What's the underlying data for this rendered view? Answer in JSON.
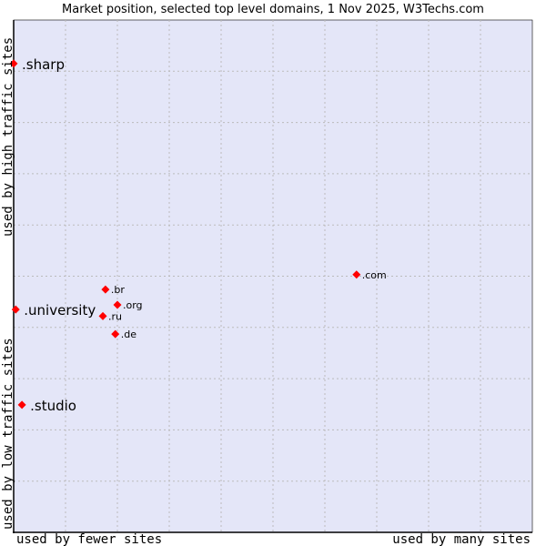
{
  "chart_data": {
    "type": "scatter",
    "title": "Market position, selected top level domains, 1 Nov 2025, W3Techs.com",
    "xlabel_left": "used by fewer sites",
    "xlabel_right": "used by many sites",
    "ylabel_bottom": "used by low traffic sites",
    "ylabel_top": "used by high traffic sites",
    "xlim": [
      0,
      100
    ],
    "ylim": [
      0,
      100
    ],
    "grid": true,
    "plot_background": "#e4e6f8",
    "point_color": "#ff0000",
    "points": [
      {
        "label": ".sharp",
        "x": 0.0,
        "y": 91.5,
        "highlight": true
      },
      {
        "label": ".university",
        "x": 0.4,
        "y": 43.5,
        "highlight": true
      },
      {
        "label": ".studio",
        "x": 1.6,
        "y": 24.9,
        "highlight": true
      },
      {
        "label": ".br",
        "x": 17.7,
        "y": 47.4,
        "highlight": false
      },
      {
        "label": ".org",
        "x": 20.0,
        "y": 44.4,
        "highlight": false
      },
      {
        "label": ".ru",
        "x": 17.2,
        "y": 42.2,
        "highlight": false
      },
      {
        "label": ".de",
        "x": 19.6,
        "y": 38.7,
        "highlight": false
      },
      {
        "label": ".com",
        "x": 66.1,
        "y": 50.3,
        "highlight": false
      }
    ]
  }
}
